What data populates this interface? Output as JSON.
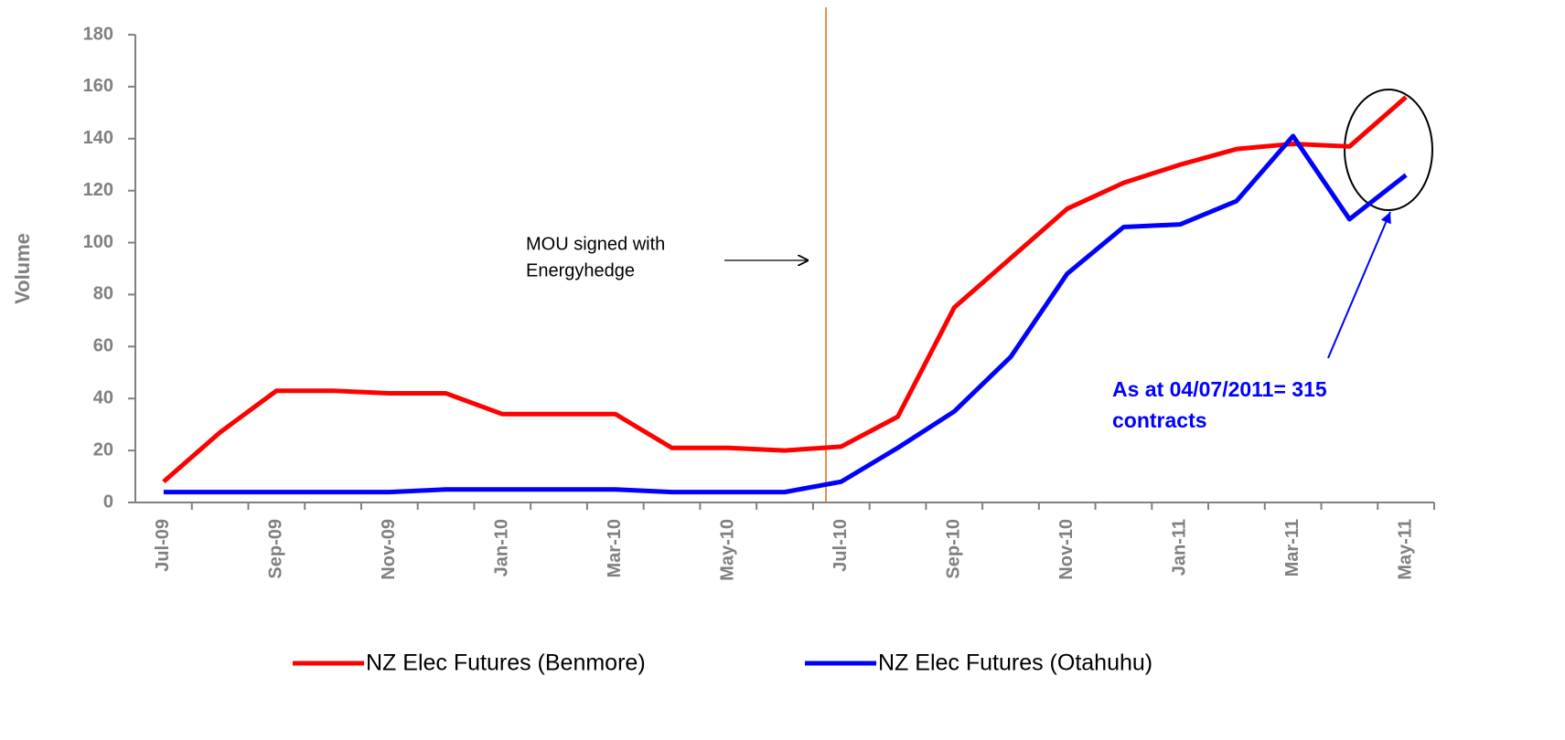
{
  "chart_data": {
    "type": "line",
    "y_label": "Volume",
    "categories": [
      "Jul-09",
      null,
      "Sep-09",
      null,
      "Nov-09",
      null,
      "Jan-10",
      null,
      "Mar-10",
      null,
      "May-10",
      null,
      "Jul-10",
      null,
      "Sep-10",
      null,
      "Nov-10",
      null,
      "Jan-11",
      null,
      "Mar-11",
      null,
      "May-11"
    ],
    "series": [
      {
        "name": "NZ Elec Futures (Benmore)",
        "color": "#ff0000",
        "values": [
          8,
          27,
          43,
          43,
          42,
          42,
          34,
          34,
          34,
          21,
          21,
          20,
          21.5,
          33,
          75,
          94,
          113,
          123,
          130,
          136,
          138,
          137,
          156
        ]
      },
      {
        "name": "NZ Elec Futures (Otahuhu)",
        "color": "#0000ff",
        "values": [
          4,
          4,
          4,
          4,
          4,
          5,
          5,
          5,
          5,
          4,
          4,
          4,
          8,
          21,
          35,
          56,
          88,
          106,
          107,
          116,
          141,
          109,
          126
        ]
      }
    ],
    "ylim": [
      0,
      180
    ],
    "yticks": [
      0,
      20,
      40,
      60,
      80,
      100,
      120,
      140,
      160,
      180
    ],
    "grid": false,
    "legend": "bottom",
    "annotations": [
      {
        "lines": [
          "MOU signed with",
          "Energyhedge"
        ],
        "color": "#000000"
      },
      {
        "lines": [
          "As at 04/07/2011= 315",
          "contracts"
        ],
        "color": "#0000ff"
      }
    ]
  }
}
